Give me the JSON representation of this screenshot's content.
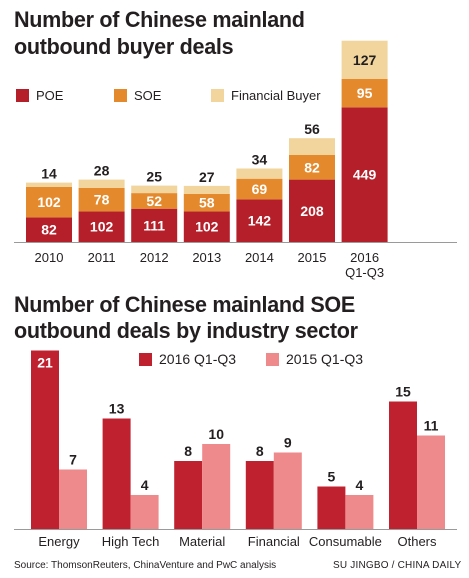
{
  "colors": {
    "poe": "#b51f2a",
    "soe": "#e58a2c",
    "financial": "#f1d59d",
    "q1q3_2016": "#c0212f",
    "q1q3_2015": "#ee8a8c",
    "axis": "#9a9a9a",
    "text": "#231f20"
  },
  "chart_data": [
    {
      "type": "bar",
      "stacked": true,
      "title": "Number of Chinese mainland outbound buyer deals",
      "title_lines": [
        "Number of Chinese mainland",
        "outbound buyer deals"
      ],
      "categories": [
        "2010",
        "2011",
        "2012",
        "2013",
        "2014",
        "2015",
        "2016 Q1-Q3"
      ],
      "category_lines": [
        [
          "2010"
        ],
        [
          "2011"
        ],
        [
          "2012"
        ],
        [
          "2013"
        ],
        [
          "2014"
        ],
        [
          "2015"
        ],
        [
          "2016",
          "Q1-Q3"
        ]
      ],
      "series": [
        {
          "name": "POE",
          "values": [
            82,
            102,
            111,
            102,
            142,
            208,
            449
          ]
        },
        {
          "name": "SOE",
          "values": [
            102,
            78,
            52,
            58,
            69,
            82,
            95
          ]
        },
        {
          "name": "Financial Buyer",
          "values": [
            14,
            28,
            25,
            27,
            34,
            56,
            127
          ]
        }
      ],
      "legend": "top-left",
      "grid": false,
      "ylim": [
        0,
        700
      ]
    },
    {
      "type": "bar",
      "stacked": false,
      "title": "Number of Chinese mainland SOE outbound deals by industry sector",
      "title_lines": [
        "Number of Chinese mainland SOE",
        "outbound deals by industry sector"
      ],
      "categories": [
        "Energy",
        "High Tech",
        "Material",
        "Financial",
        "Consumable",
        "Others"
      ],
      "series": [
        {
          "name": "2016 Q1-Q3",
          "values": [
            21,
            13,
            8,
            8,
            5,
            15
          ]
        },
        {
          "name": "2015 Q1-Q3",
          "values": [
            7,
            4,
            10,
            9,
            4,
            11
          ]
        }
      ],
      "legend": "top-center",
      "grid": false,
      "ylim": [
        0,
        21
      ]
    }
  ],
  "footer": {
    "source": "Source: ThomsonReuters, ChinaVenture and PwC analysis",
    "credit": "SU JINGBO / CHINA DAILY"
  }
}
